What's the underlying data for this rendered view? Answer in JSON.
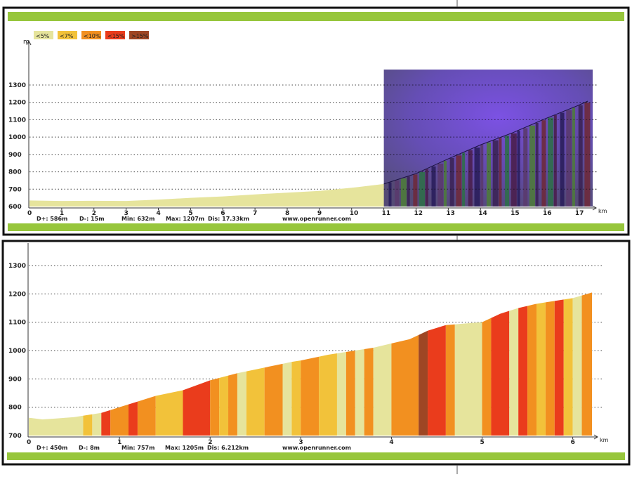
{
  "legend": [
    {
      "label": "<5%",
      "color": "#e6e49c"
    },
    {
      "label": "<7%",
      "color": "#f2c23a"
    },
    {
      "label": "<10%",
      "color": "#f29020"
    },
    {
      "label": "<15%",
      "color": "#ea3c1c"
    },
    {
      "label": ">15%",
      "color": "#9e4624"
    }
  ],
  "band_color": "#97c63c",
  "chart_data": [
    {
      "type": "area",
      "yunit": "m",
      "xunit": "km",
      "ylim": [
        600,
        1300
      ],
      "yticks": [
        600,
        700,
        800,
        900,
        1000,
        1100,
        1200,
        1300
      ],
      "xlim": [
        0,
        17.33
      ],
      "xticks": [
        0,
        1,
        2,
        3,
        4,
        5,
        6,
        7,
        8,
        9,
        10,
        11,
        12,
        13,
        14,
        15,
        16,
        17
      ],
      "grid": true,
      "x": [
        0,
        1,
        2,
        3,
        4,
        5,
        6,
        7,
        8,
        9,
        10,
        11,
        12,
        13,
        14,
        15,
        16,
        17,
        17.33
      ],
      "y": [
        635,
        632,
        633,
        632,
        640,
        650,
        658,
        670,
        680,
        690,
        708,
        730,
        790,
        875,
        955,
        1025,
        1105,
        1180,
        1207
      ],
      "overlay_range": [
        11,
        17.33
      ],
      "stats": {
        "dplus": "D+: 586m",
        "dminus": "D-: 15m",
        "min": "Min: 632m",
        "max": "Max: 1207m",
        "dist": "Dis: 17.33km"
      },
      "website": "www.openrunner.com"
    },
    {
      "type": "area",
      "xunit": "km",
      "ylim": [
        700,
        1300
      ],
      "yticks": [
        700,
        800,
        900,
        1000,
        1100,
        1200,
        1300
      ],
      "xlim": [
        0,
        6.212
      ],
      "xticks": [
        0,
        1,
        2,
        3,
        4,
        5,
        6
      ],
      "grid": true,
      "x": [
        0,
        0.15,
        0.3,
        0.5,
        0.6,
        0.8,
        1.0,
        1.2,
        1.4,
        1.7,
        2.0,
        2.3,
        2.6,
        2.9,
        3.0,
        3.3,
        3.6,
        3.8,
        4.0,
        4.2,
        4.4,
        4.6,
        4.8,
        5.0,
        5.2,
        5.4,
        5.6,
        5.8,
        6.0,
        6.212
      ],
      "y": [
        763,
        757,
        760,
        765,
        770,
        780,
        800,
        820,
        840,
        860,
        895,
        920,
        940,
        960,
        965,
        985,
        1000,
        1010,
        1025,
        1040,
        1070,
        1090,
        1095,
        1100,
        1130,
        1150,
        1165,
        1175,
        1185,
        1205
      ],
      "segments": [
        {
          "from": 0,
          "to": 0.6,
          "class": "<5%"
        },
        {
          "from": 0.6,
          "to": 0.7,
          "class": "<7%"
        },
        {
          "from": 0.7,
          "to": 0.8,
          "class": "<5%"
        },
        {
          "from": 0.8,
          "to": 0.9,
          "class": "<15%"
        },
        {
          "from": 0.9,
          "to": 1.1,
          "class": "<10%"
        },
        {
          "from": 1.1,
          "to": 1.2,
          "class": "<15%"
        },
        {
          "from": 1.2,
          "to": 1.4,
          "class": "<10%"
        },
        {
          "from": 1.4,
          "to": 1.7,
          "class": "<7%"
        },
        {
          "from": 1.7,
          "to": 2.0,
          "class": "<15%"
        },
        {
          "from": 2.0,
          "to": 2.1,
          "class": "<10%"
        },
        {
          "from": 2.1,
          "to": 2.2,
          "class": "<7%"
        },
        {
          "from": 2.2,
          "to": 2.3,
          "class": "<10%"
        },
        {
          "from": 2.3,
          "to": 2.4,
          "class": "<5%"
        },
        {
          "from": 2.4,
          "to": 2.6,
          "class": "<7%"
        },
        {
          "from": 2.6,
          "to": 2.8,
          "class": "<10%"
        },
        {
          "from": 2.8,
          "to": 2.9,
          "class": "<5%"
        },
        {
          "from": 2.9,
          "to": 3.0,
          "class": "<7%"
        },
        {
          "from": 3.0,
          "to": 3.2,
          "class": "<10%"
        },
        {
          "from": 3.2,
          "to": 3.4,
          "class": "<7%"
        },
        {
          "from": 3.4,
          "to": 3.5,
          "class": "<5%"
        },
        {
          "from": 3.5,
          "to": 3.6,
          "class": "<10%"
        },
        {
          "from": 3.6,
          "to": 3.7,
          "class": "<5%"
        },
        {
          "from": 3.7,
          "to": 3.8,
          "class": "<10%"
        },
        {
          "from": 3.8,
          "to": 4.0,
          "class": "<5%"
        },
        {
          "from": 4.0,
          "to": 4.3,
          "class": "<10%"
        },
        {
          "from": 4.3,
          "to": 4.4,
          "class": ">15%"
        },
        {
          "from": 4.4,
          "to": 4.6,
          "class": "<15%"
        },
        {
          "from": 4.6,
          "to": 4.7,
          "class": "<10%"
        },
        {
          "from": 4.7,
          "to": 5.0,
          "class": "<5%"
        },
        {
          "from": 5.0,
          "to": 5.1,
          "class": "<10%"
        },
        {
          "from": 5.1,
          "to": 5.3,
          "class": "<15%"
        },
        {
          "from": 5.3,
          "to": 5.4,
          "class": "<5%"
        },
        {
          "from": 5.4,
          "to": 5.5,
          "class": "<15%"
        },
        {
          "from": 5.5,
          "to": 5.6,
          "class": "<10%"
        },
        {
          "from": 5.6,
          "to": 5.7,
          "class": "<7%"
        },
        {
          "from": 5.7,
          "to": 5.8,
          "class": "<10%"
        },
        {
          "from": 5.8,
          "to": 5.9,
          "class": "<15%"
        },
        {
          "from": 5.9,
          "to": 6.0,
          "class": "<7%"
        },
        {
          "from": 6.0,
          "to": 6.1,
          "class": "<5%"
        },
        {
          "from": 6.1,
          "to": 6.212,
          "class": "<10%"
        }
      ],
      "stats": {
        "dplus": "D+: 450m",
        "dminus": "D-: 8m",
        "min": "Min: 757m",
        "max": "Max: 1205m",
        "dist": "Dis: 6.212km"
      },
      "website": "www.openrunner.com"
    }
  ]
}
